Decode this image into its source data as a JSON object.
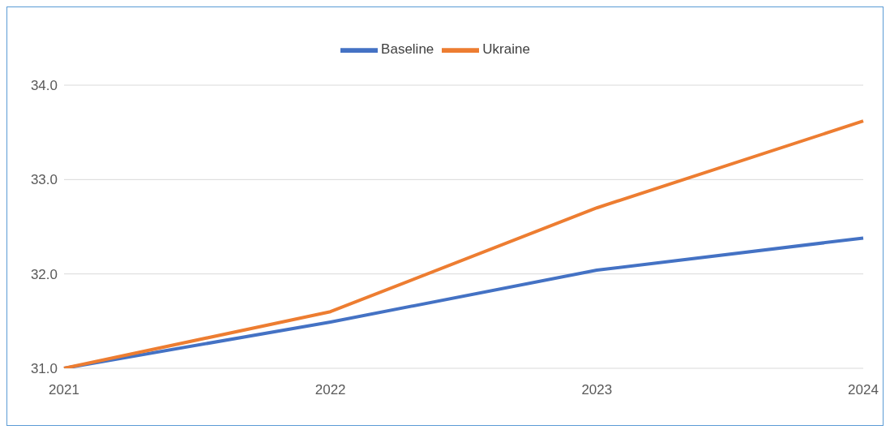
{
  "chart_data": {
    "type": "line",
    "categories": [
      "2021",
      "2022",
      "2023",
      "2024"
    ],
    "series": [
      {
        "name": "Baseline",
        "color": "#4472c4",
        "values": [
          31.0,
          31.49,
          32.04,
          32.38
        ]
      },
      {
        "name": "Ukraine",
        "color": "#ed7d31",
        "values": [
          31.0,
          31.6,
          32.7,
          33.62
        ]
      }
    ],
    "ylim": [
      31,
      34
    ],
    "yticks": [
      {
        "value": 31,
        "label": "31.0"
      },
      {
        "value": 32,
        "label": "32.0"
      },
      {
        "value": 33,
        "label": "33.0"
      },
      {
        "value": 34,
        "label": "34.0"
      }
    ],
    "grid": "y",
    "legend": "top",
    "marker": "none",
    "line_style": "solid"
  }
}
